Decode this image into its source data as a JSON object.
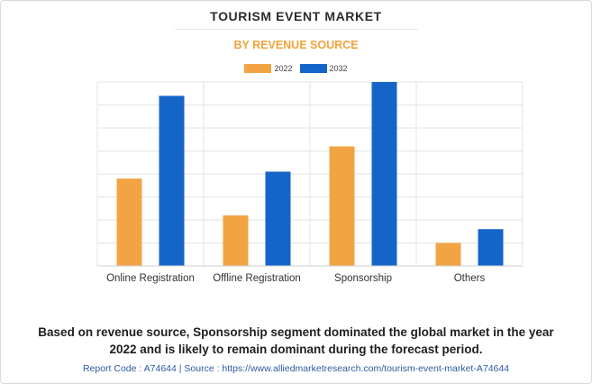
{
  "header": {
    "title": "TOURISM EVENT MARKET",
    "subtitle": "BY REVENUE SOURCE"
  },
  "colors": {
    "series_2022": "#f2a444",
    "series_2032": "#1565c8",
    "grid": "#e3e3e3"
  },
  "chart_data": {
    "type": "bar",
    "title": "TOURISM EVENT MARKET",
    "subtitle": "BY REVENUE SOURCE",
    "categories": [
      "Online Registration",
      "Offline Registration",
      "Sponsorship",
      "Others"
    ],
    "series": [
      {
        "name": "2022",
        "values": [
          3.8,
          2.2,
          5.2,
          1.0
        ]
      },
      {
        "name": "2032",
        "values": [
          7.4,
          4.1,
          8.0,
          1.6
        ]
      }
    ],
    "xlabel": "",
    "ylabel": "",
    "ylim": [
      0,
      8
    ],
    "grid": true,
    "legend": "top-center"
  },
  "footer": {
    "caption_line1": "Based on revenue source, Sponsorship segment dominated the global market in the year",
    "caption_line2": "2022 and is likely to remain dominant during the forecast period.",
    "source": "Report Code : A74644  |  Source : https://www.alliedmarketresearch.com/tourism-event-market-A74644"
  }
}
